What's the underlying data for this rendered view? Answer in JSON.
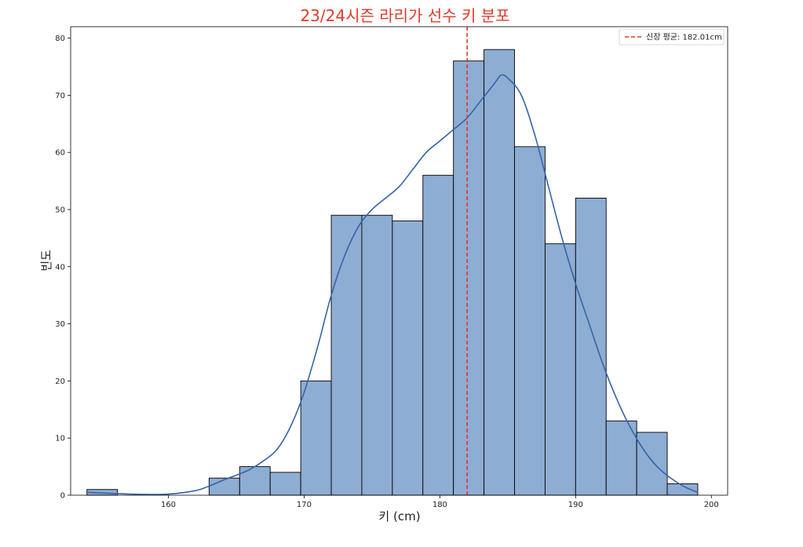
{
  "chart_data": {
    "type": "histogram",
    "title": "23/24시즌 라리가 선수 키 분포",
    "xlabel": "키 (cm)",
    "ylabel": "빈도",
    "xlim": [
      152.8,
      201.2
    ],
    "ylim": [
      0,
      82
    ],
    "xticks": [
      160,
      170,
      180,
      190,
      200
    ],
    "yticks": [
      0,
      10,
      20,
      30,
      40,
      50,
      60,
      70,
      80
    ],
    "bins": [
      {
        "start": 154.0,
        "end": 156.25,
        "count": 1
      },
      {
        "start": 156.25,
        "end": 158.5,
        "count": 0
      },
      {
        "start": 158.5,
        "end": 160.75,
        "count": 0
      },
      {
        "start": 160.75,
        "end": 163.0,
        "count": 0
      },
      {
        "start": 163.0,
        "end": 165.25,
        "count": 3
      },
      {
        "start": 165.25,
        "end": 167.5,
        "count": 5
      },
      {
        "start": 167.5,
        "end": 169.75,
        "count": 4
      },
      {
        "start": 169.75,
        "end": 172.0,
        "count": 20
      },
      {
        "start": 172.0,
        "end": 174.25,
        "count": 49
      },
      {
        "start": 174.25,
        "end": 176.5,
        "count": 49
      },
      {
        "start": 176.5,
        "end": 178.75,
        "count": 48
      },
      {
        "start": 178.75,
        "end": 181.0,
        "count": 56
      },
      {
        "start": 181.0,
        "end": 183.25,
        "count": 76
      },
      {
        "start": 183.25,
        "end": 185.5,
        "count": 78
      },
      {
        "start": 185.5,
        "end": 187.75,
        "count": 61
      },
      {
        "start": 187.75,
        "end": 190.0,
        "count": 44
      },
      {
        "start": 190.0,
        "end": 192.25,
        "count": 52
      },
      {
        "start": 192.25,
        "end": 194.5,
        "count": 13
      },
      {
        "start": 194.5,
        "end": 196.75,
        "count": 11
      },
      {
        "start": 196.75,
        "end": 199.0,
        "count": 2
      }
    ],
    "kde": {
      "x": [
        154,
        156,
        158,
        160,
        162,
        163,
        164,
        165,
        166,
        167,
        168,
        169,
        170,
        171,
        172,
        173,
        174,
        175,
        176,
        177,
        178,
        179,
        180,
        181,
        182,
        183,
        184,
        184.5,
        185,
        186,
        187,
        188,
        189,
        190,
        191,
        192,
        193,
        194,
        195,
        196,
        197,
        198,
        199
      ],
      "y": [
        0.5,
        0.3,
        0.15,
        0.2,
        0.8,
        1.6,
        2.6,
        3.5,
        4.5,
        6,
        8,
        12,
        18,
        26,
        35,
        42,
        47,
        50,
        52,
        54,
        57,
        60,
        62,
        64,
        66,
        69,
        72,
        73.5,
        73,
        70,
        63,
        54,
        45,
        37,
        30,
        23,
        17,
        12,
        8,
        5,
        3,
        1.5,
        0.5
      ]
    },
    "mean_line": {
      "x": 182.01,
      "label": "신장 평균: 182.01cm",
      "color": "#e03a2a"
    },
    "bar_color": "#8eadd3",
    "bar_edge_color": "#000000",
    "kde_color": "#3464a8",
    "legend_position": "top-right",
    "grid": false
  }
}
